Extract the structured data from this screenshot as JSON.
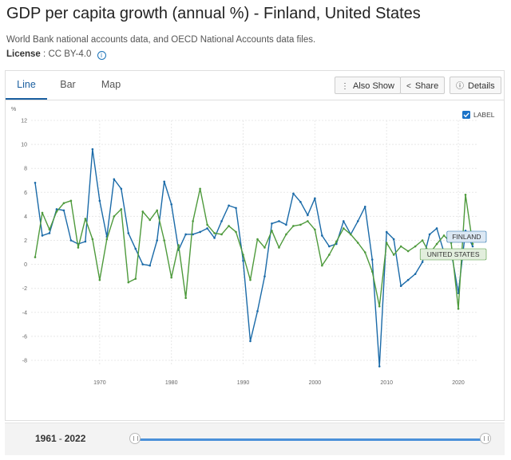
{
  "header": {
    "title": "GDP per capita growth (annual %) - Finland, United States",
    "source": "World Bank national accounts data, and OECD National Accounts data files.",
    "license_label": "License",
    "license_value": "CC BY-4.0",
    "license_sep": ":"
  },
  "tabs": [
    {
      "label": "Line",
      "active": true
    },
    {
      "label": "Bar",
      "active": false
    },
    {
      "label": "Map",
      "active": false
    }
  ],
  "toolbar": {
    "also_show": "Also Show",
    "share": "Share",
    "details": "Details"
  },
  "label_toggle": {
    "label": "LABEL",
    "checked": true
  },
  "range": {
    "start": "1961",
    "end": "2022",
    "sep": "-"
  },
  "colors": {
    "finland": "#1a6aa8",
    "us": "#4e9a3c",
    "finland_tag_bg": "#dce8f4",
    "us_tag_bg": "#e2eedd"
  },
  "chart_data": {
    "type": "line",
    "ylabel": "%",
    "ylim": [
      -9,
      12
    ],
    "yticks": [
      12,
      10,
      8,
      6,
      4,
      2,
      0,
      -2,
      -4,
      -6,
      -8
    ],
    "xticks": [
      1970,
      1980,
      1990,
      2000,
      2010,
      2020
    ],
    "x": [
      1961,
      1962,
      1963,
      1964,
      1965,
      1966,
      1967,
      1968,
      1969,
      1970,
      1971,
      1972,
      1973,
      1974,
      1975,
      1976,
      1977,
      1978,
      1979,
      1980,
      1981,
      1982,
      1983,
      1984,
      1985,
      1986,
      1987,
      1988,
      1989,
      1990,
      1991,
      1992,
      1993,
      1994,
      1995,
      1996,
      1997,
      1998,
      1999,
      2000,
      2001,
      2002,
      2003,
      2004,
      2005,
      2006,
      2007,
      2008,
      2009,
      2010,
      2011,
      2012,
      2013,
      2014,
      2015,
      2016,
      2017,
      2018,
      2019,
      2020,
      2021,
      2022
    ],
    "series": [
      {
        "name": "FINLAND",
        "color": "#1a6aa8",
        "values": [
          6.8,
          2.4,
          2.6,
          4.6,
          4.5,
          2.0,
          1.7,
          1.9,
          9.6,
          5.3,
          2.3,
          7.1,
          6.3,
          2.6,
          1.3,
          0.0,
          -0.1,
          2.0,
          6.9,
          5.0,
          1.2,
          2.5,
          2.5,
          2.7,
          3.0,
          2.2,
          3.6,
          4.9,
          4.7,
          0.3,
          -6.4,
          -3.9,
          -1.0,
          3.4,
          3.6,
          3.3,
          5.9,
          5.2,
          4.1,
          5.5,
          2.4,
          1.5,
          1.7,
          3.6,
          2.5,
          3.6,
          4.8,
          0.4,
          -8.5,
          2.7,
          2.1,
          -1.8,
          -1.3,
          -0.8,
          0.2,
          2.5,
          3.0,
          1.0,
          1.1,
          -2.4,
          2.8,
          1.5
        ]
      },
      {
        "name": "UNITED STATES",
        "color": "#4e9a3c",
        "values": [
          0.6,
          4.3,
          2.9,
          4.4,
          5.1,
          5.3,
          1.4,
          3.8,
          2.1,
          -1.3,
          2.1,
          4.0,
          4.6,
          -1.5,
          -1.2,
          4.4,
          3.7,
          4.5,
          2.0,
          -1.1,
          1.6,
          -2.8,
          3.6,
          6.3,
          3.3,
          2.6,
          2.5,
          3.2,
          2.7,
          0.8,
          -1.3,
          2.1,
          1.4,
          2.8,
          1.4,
          2.5,
          3.2,
          3.3,
          3.6,
          2.9,
          -0.1,
          0.8,
          1.9,
          3.0,
          2.5,
          1.8,
          1.0,
          -0.6,
          -3.5,
          1.8,
          0.8,
          1.5,
          1.1,
          1.5,
          2.0,
          0.9,
          1.7,
          2.4,
          1.8,
          -3.7,
          5.8,
          1.7
        ]
      }
    ]
  }
}
